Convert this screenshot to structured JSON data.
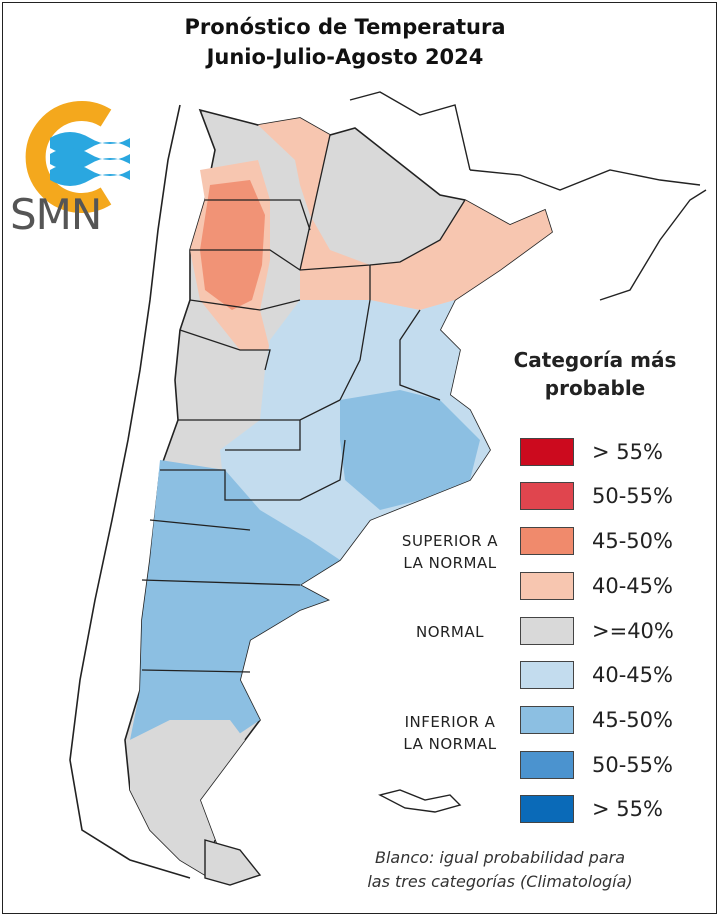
{
  "title": {
    "line1": "Pronóstico de Temperatura",
    "line2": "Junio-Julio-Agosto 2024"
  },
  "logo": {
    "text": "SMN",
    "icon": "smn-sun-waves-logo"
  },
  "legend": {
    "title_line1": "Categoría más",
    "title_line2": "probable",
    "categories": {
      "superior_line1": "SUPERIOR A",
      "superior_line2": "LA NORMAL",
      "normal": "NORMAL",
      "inferior_line1": "INFERIOR A",
      "inferior_line2": "LA NORMAL"
    },
    "items": [
      {
        "label": "> 55%",
        "color": "#cc0a1e"
      },
      {
        "label": "50-55%",
        "color": "#e0454e"
      },
      {
        "label": "45-50%",
        "color": "#f08a6c"
      },
      {
        "label": "40-45%",
        "color": "#f7c6b0"
      },
      {
        "label": ">=40%",
        "color": "#d9d9d9"
      },
      {
        "label": "40-45%",
        "color": "#c3dcee"
      },
      {
        "label": "45-50%",
        "color": "#8cbfe2"
      },
      {
        "label": "50-55%",
        "color": "#4b93cf"
      },
      {
        "label": "> 55%",
        "color": "#0a6ab8"
      }
    ]
  },
  "footnote": {
    "line1": "Blanco: igual probabilidad para",
    "line2": "las tres categorías (Climatología)"
  }
}
